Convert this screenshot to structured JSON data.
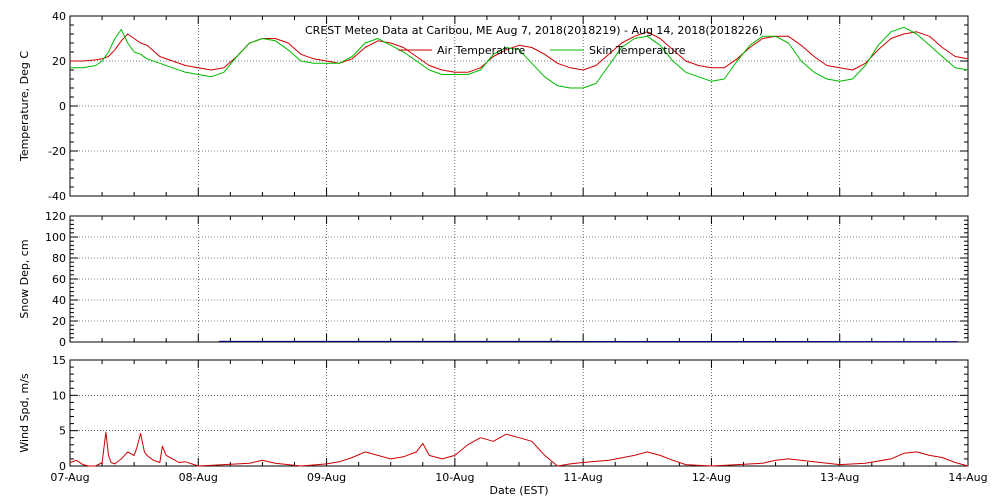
{
  "chart_data": {
    "title": "CREST Meteo Data at Caribou, ME   Aug  7, 2018(2018219) - Aug 14, 2018(2018226)",
    "xlabel": "Date (EST)",
    "x_ticks": [
      "07-Aug",
      "08-Aug",
      "09-Aug",
      "10-Aug",
      "11-Aug",
      "12-Aug",
      "13-Aug",
      "14-Aug"
    ],
    "grid": true,
    "panels": [
      {
        "type": "line",
        "ylabel": "Temperature, Deg C",
        "ylim": [
          -40,
          40
        ],
        "y_ticks": [
          -40,
          -20,
          0,
          20,
          40
        ],
        "legend": "top-center",
        "series": [
          {
            "name": "Air Temperature",
            "color": "#cc0000",
            "x": [
              0,
              0.1,
              0.2,
              0.25,
              0.3,
              0.35,
              0.4,
              0.45,
              0.5,
              0.55,
              0.6,
              0.7,
              0.8,
              0.9,
              1.0,
              1.1,
              1.2,
              1.3,
              1.4,
              1.5,
              1.6,
              1.7,
              1.8,
              1.9,
              2.0,
              2.1,
              2.2,
              2.3,
              2.4,
              2.5,
              2.6,
              2.7,
              2.8,
              2.9,
              3.0,
              3.1,
              3.2,
              3.3,
              3.4,
              3.5,
              3.6,
              3.7,
              3.8,
              3.9,
              4.0,
              4.1,
              4.2,
              4.3,
              4.4,
              4.5,
              4.6,
              4.7,
              4.8,
              4.9,
              5.0,
              5.1,
              5.2,
              5.3,
              5.4,
              5.5,
              5.6,
              5.7,
              5.8,
              5.9,
              6.0,
              6.1,
              6.2,
              6.3,
              6.4,
              6.5,
              6.6,
              6.7,
              6.8,
              6.9,
              7.0
            ],
            "y": [
              20,
              20,
              20.5,
              21,
              22,
              25,
              29,
              32,
              30,
              28,
              27,
              22,
              20,
              18,
              17,
              16,
              17,
              22,
              28,
              30,
              30,
              28,
              23,
              21,
              20,
              19,
              21,
              26,
              29,
              28,
              26,
              22,
              18,
              16,
              15,
              15,
              17,
              22,
              25,
              27,
              26,
              23,
              19,
              17,
              16,
              18,
              23,
              28,
              31,
              33,
              30,
              25,
              20,
              18,
              17,
              17,
              21,
              26,
              30,
              31,
              31,
              27,
              22,
              18,
              17,
              16,
              19,
              25,
              30,
              32,
              33,
              31,
              26,
              22,
              21
            ]
          },
          {
            "name": "Skin Temperature",
            "color": "#00bb00",
            "x": [
              0,
              0.1,
              0.2,
              0.25,
              0.3,
              0.35,
              0.4,
              0.45,
              0.5,
              0.55,
              0.6,
              0.7,
              0.8,
              0.9,
              1.0,
              1.1,
              1.2,
              1.3,
              1.4,
              1.5,
              1.6,
              1.7,
              1.8,
              1.9,
              2.0,
              2.1,
              2.2,
              2.3,
              2.4,
              2.5,
              2.6,
              2.7,
              2.8,
              2.9,
              3.0,
              3.1,
              3.2,
              3.3,
              3.4,
              3.5,
              3.6,
              3.7,
              3.8,
              3.9,
              4.0,
              4.1,
              4.2,
              4.3,
              4.4,
              4.5,
              4.6,
              4.7,
              4.8,
              4.9,
              5.0,
              5.1,
              5.2,
              5.3,
              5.4,
              5.5,
              5.6,
              5.7,
              5.8,
              5.9,
              6.0,
              6.1,
              6.2,
              6.3,
              6.4,
              6.5,
              6.6,
              6.7,
              6.8,
              6.9,
              7.0
            ],
            "y": [
              17,
              17,
              18,
              20,
              24,
              30,
              34,
              28,
              24,
              23,
              21,
              19,
              17,
              15,
              14,
              13,
              15,
              22,
              28,
              30,
              29,
              25,
              20,
              19,
              19,
              19,
              22,
              28,
              30,
              27,
              24,
              20,
              16,
              14,
              14,
              14,
              16,
              23,
              26,
              25,
              19,
              13,
              9,
              8,
              8,
              10,
              18,
              26,
              30,
              31,
              27,
              20,
              15,
              13,
              11,
              12,
              20,
              27,
              31,
              31,
              28,
              20,
              15,
              12,
              11,
              12,
              18,
              27,
              33,
              35,
              32,
              27,
              22,
              17,
              16
            ]
          }
        ]
      },
      {
        "type": "line",
        "ylabel": "Snow Dep, cm",
        "ylim": [
          0,
          120
        ],
        "y_ticks": [
          0,
          20,
          40,
          60,
          80,
          100,
          120
        ],
        "series": [
          {
            "color": "#000080",
            "x": [
              1.16,
              1.2,
              1.22,
              3.78,
              3.8,
              3.82,
              6.9,
              6.92
            ],
            "y": [
              0.6,
              0.8,
              0.6,
              0.6,
              0.9,
              0.6,
              0.4,
              0.4
            ]
          }
        ]
      },
      {
        "type": "line",
        "ylabel": "Wind Spd, m/s",
        "ylim": [
          0,
          15
        ],
        "y_ticks": [
          0,
          5,
          10,
          15
        ],
        "series": [
          {
            "color": "#cc0000",
            "x": [
              0,
              0.05,
              0.1,
              0.15,
              0.2,
              0.25,
              0.28,
              0.3,
              0.32,
              0.35,
              0.4,
              0.45,
              0.5,
              0.52,
              0.55,
              0.58,
              0.6,
              0.65,
              0.7,
              0.72,
              0.75,
              0.8,
              0.85,
              0.9,
              1.0,
              1.2,
              1.4,
              1.5,
              1.6,
              1.7,
              1.8,
              2.0,
              2.1,
              2.2,
              2.3,
              2.4,
              2.5,
              2.6,
              2.7,
              2.75,
              2.8,
              2.9,
              3.0,
              3.1,
              3.2,
              3.3,
              3.4,
              3.5,
              3.6,
              3.7,
              3.8,
              3.9,
              4.0,
              4.2,
              4.4,
              4.5,
              4.6,
              4.7,
              4.8,
              5.0,
              5.2,
              5.4,
              5.5,
              5.6,
              5.8,
              6.0,
              6.2,
              6.4,
              6.5,
              6.6,
              6.7,
              6.8,
              6.9,
              7.0
            ],
            "y": [
              0.5,
              0.8,
              0.2,
              0,
              0,
              0.5,
              4.8,
              1.5,
              0.5,
              0.3,
              1,
              2,
              1.5,
              2.5,
              4.6,
              2,
              1.5,
              0.8,
              0.5,
              2.8,
              1.5,
              1,
              0.5,
              0.6,
              0,
              0.2,
              0.4,
              0.8,
              0.4,
              0.2,
              0,
              0.3,
              0.6,
              1.2,
              2,
              1.5,
              1,
              1.3,
              2,
              3.2,
              1.5,
              1,
              1.5,
              3,
              4,
              3.5,
              4.5,
              4,
              3.5,
              1.5,
              0,
              0.3,
              0.5,
              0.8,
              1.5,
              2,
              1.5,
              0.8,
              0.2,
              0,
              0.2,
              0.4,
              0.8,
              1,
              0.6,
              0.2,
              0.4,
              1,
              1.8,
              2,
              1.5,
              1.2,
              0.5,
              0
            ]
          }
        ]
      }
    ]
  }
}
